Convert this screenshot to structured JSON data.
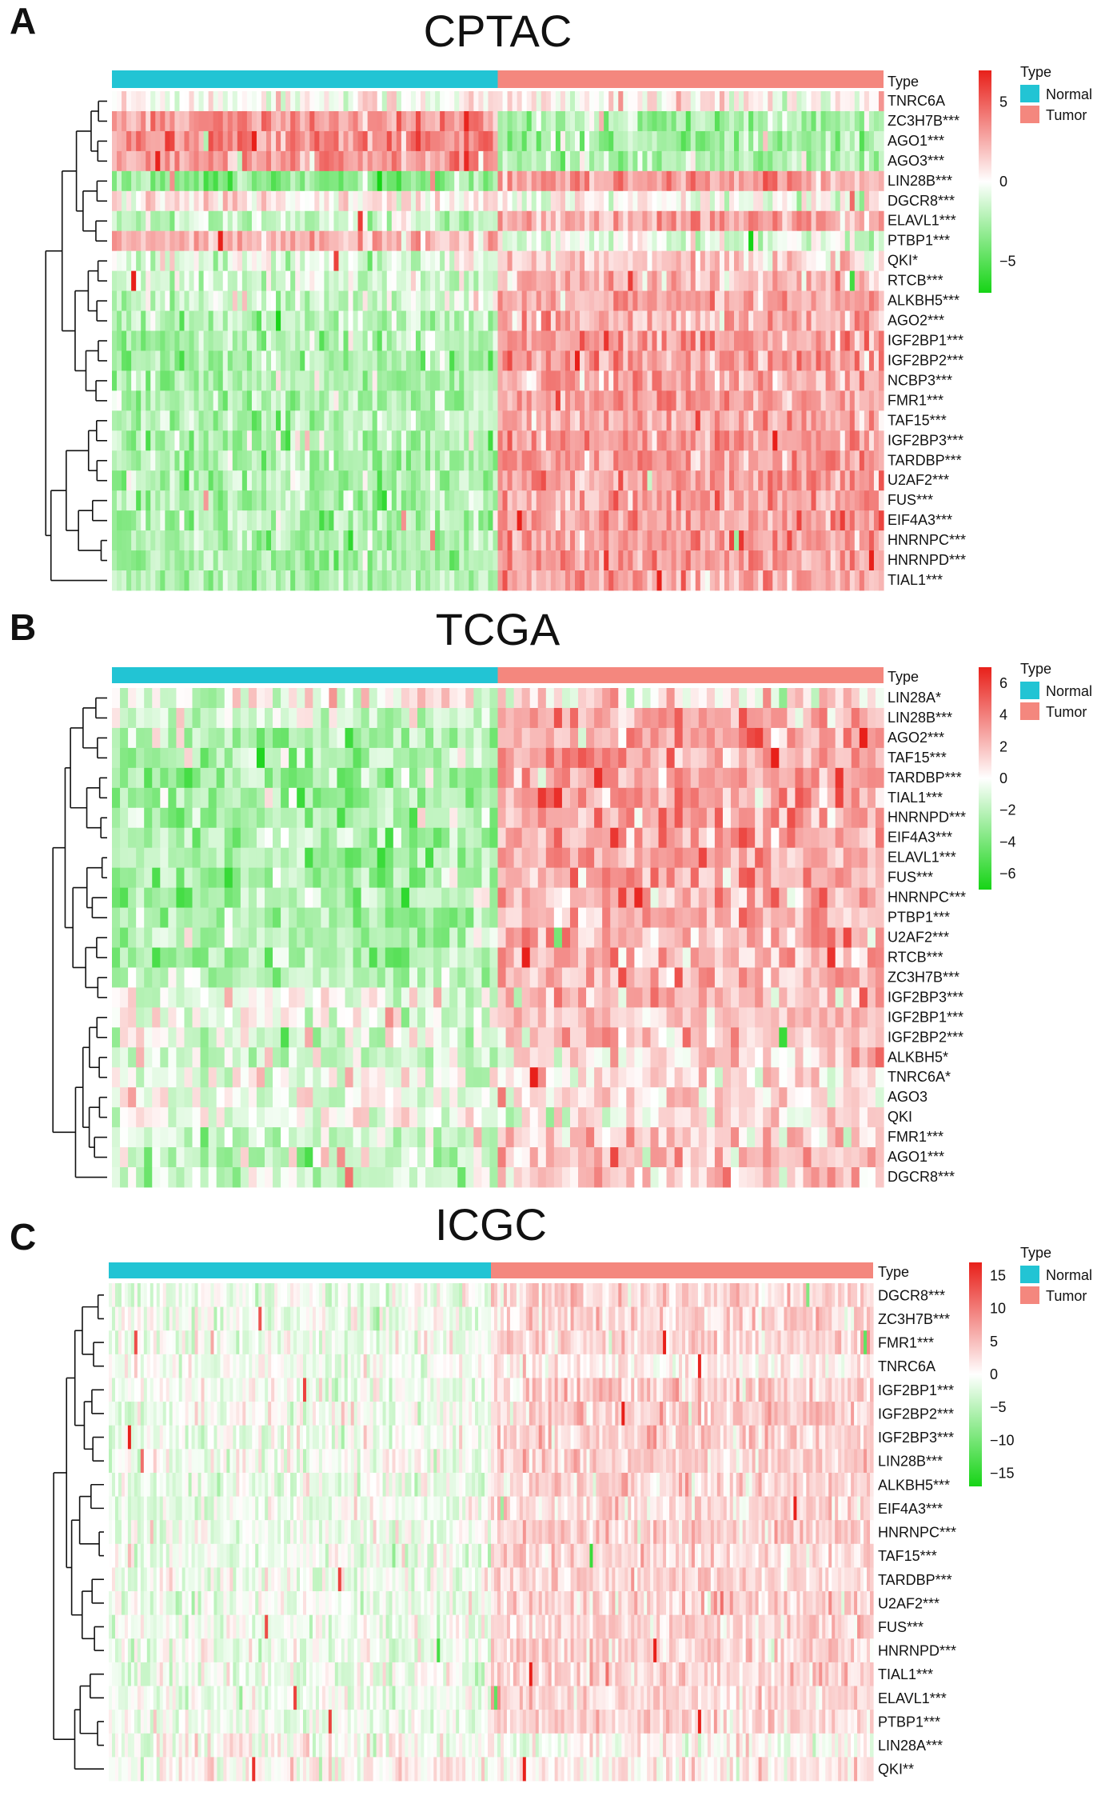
{
  "colors": {
    "normal": "#22c4d4",
    "tumor": "#f4877e",
    "high": "#e8201a",
    "mid": "#ffffff",
    "low": "#16d416"
  },
  "legend": {
    "title": "Type",
    "entries": [
      "Normal",
      "Tumor"
    ]
  },
  "chart_data": [
    {
      "type": "heatmap",
      "panel": "A",
      "title": "CPTAC",
      "annotation_label": "Type",
      "groups": [
        "Normal",
        "Tumor"
      ],
      "group_fraction": [
        0.5,
        0.5
      ],
      "rows": [
        "TNRC6A",
        "ZC3H7B***",
        "AGO1***",
        "AGO3***",
        "LIN28B***",
        "DGCR8***",
        "ELAVL1***",
        "PTBP1***",
        "QKI*",
        "RTCB***",
        "ALKBH5***",
        "AGO2***",
        "IGF2BP1***",
        "IGF2BP2***",
        "NCBP3***",
        "FMR1***",
        "TAF15***",
        "IGF2BP3***",
        "TARDBP***",
        "U2AF2***",
        "FUS***",
        "EIF4A3***",
        "HNRNPC***",
        "HNRNPD***",
        "TIAL1***"
      ],
      "normal_mean": [
        0.1,
        1.2,
        1.4,
        1.1,
        -1.3,
        0.3,
        -0.6,
        0.8,
        -0.3,
        -0.5,
        -0.4,
        -0.8,
        -0.9,
        -0.9,
        -0.9,
        -0.9,
        -0.8,
        -0.9,
        -0.9,
        -0.9,
        -0.9,
        -0.9,
        -0.9,
        -0.9,
        -0.9
      ],
      "tumor_mean": [
        0.1,
        -0.8,
        -1.0,
        -0.8,
        1.0,
        -0.1,
        1.0,
        -0.3,
        0.5,
        0.8,
        0.9,
        0.9,
        1.1,
        1.1,
        1.0,
        1.1,
        1.0,
        1.1,
        1.1,
        1.1,
        1.1,
        1.1,
        1.1,
        1.1,
        1.0
      ],
      "color_scale": {
        "min": -7,
        "max": 7,
        "ticks": [
          "5",
          "0",
          "−5"
        ],
        "tick_values": [
          5,
          0,
          -5
        ]
      },
      "n_columns": 160
    },
    {
      "type": "heatmap",
      "panel": "B",
      "title": "TCGA",
      "annotation_label": "Type",
      "groups": [
        "Normal",
        "Tumor"
      ],
      "group_fraction": [
        0.5,
        0.5
      ],
      "rows": [
        "LIN28A*",
        "LIN28B***",
        "AGO2***",
        "TAF15***",
        "TARDBP***",
        "TIAL1***",
        "HNRNPD***",
        "EIF4A3***",
        "ELAVL1***",
        "FUS***",
        "HNRNPC***",
        "PTBP1***",
        "U2AF2***",
        "RTCB***",
        "ZC3H7B***",
        "IGF2BP3***",
        "IGF2BP1***",
        "IGF2BP2***",
        "ALKBH5*",
        "TNRC6A*",
        "AGO3",
        "QKI",
        "FMR1***",
        "AGO1***",
        "DGCR8***"
      ],
      "normal_mean": [
        -0.1,
        -0.3,
        -1.0,
        -1.0,
        -1.0,
        -1.0,
        -1.0,
        -1.0,
        -1.0,
        -1.0,
        -1.0,
        -1.0,
        -1.0,
        -0.9,
        -0.8,
        -0.3,
        -0.3,
        -0.3,
        -0.4,
        -0.2,
        -0.2,
        0.0,
        -0.5,
        -0.7,
        -0.6
      ],
      "tumor_mean": [
        0.2,
        0.9,
        1.1,
        1.1,
        1.1,
        1.1,
        1.1,
        1.1,
        1.1,
        1.1,
        1.1,
        1.0,
        1.0,
        0.9,
        0.9,
        0.7,
        0.7,
        0.7,
        0.5,
        0.3,
        0.3,
        0.2,
        0.6,
        0.7,
        0.6
      ],
      "color_scale": {
        "min": -7,
        "max": 7,
        "ticks": [
          "6",
          "4",
          "2",
          "0",
          "−2",
          "−4",
          "−6"
        ],
        "tick_values": [
          6,
          4,
          2,
          0,
          -2,
          -4,
          -6
        ]
      },
      "n_columns": 96
    },
    {
      "type": "heatmap",
      "panel": "C",
      "title": "ICGC",
      "annotation_label": "Type",
      "groups": [
        "Normal",
        "Tumor"
      ],
      "group_fraction": [
        0.5,
        0.5
      ],
      "rows": [
        "DGCR8***",
        "ZC3H7B***",
        "FMR1***",
        "TNRC6A",
        "IGF2BP1***",
        "IGF2BP2***",
        "IGF2BP3***",
        "LIN28B***",
        "ALKBH5***",
        "EIF4A3***",
        "HNRNPC***",
        "TAF15***",
        "TARDBP***",
        "U2AF2***",
        "FUS***",
        "HNRNPD***",
        "TIAL1***",
        "ELAVL1***",
        "PTBP1***",
        "LIN28A***",
        "QKI**"
      ],
      "normal_mean": [
        -0.3,
        -0.3,
        -0.3,
        -0.1,
        -0.2,
        -0.2,
        -0.2,
        -0.2,
        -0.3,
        -0.3,
        -0.3,
        -0.3,
        -0.3,
        -0.3,
        -0.3,
        -0.3,
        -0.3,
        -0.3,
        -0.3,
        0.0,
        0.1
      ],
      "tumor_mean": [
        0.8,
        0.8,
        0.8,
        0.3,
        0.9,
        0.9,
        0.9,
        0.9,
        0.8,
        0.8,
        0.8,
        0.8,
        0.8,
        0.8,
        0.8,
        0.8,
        0.8,
        0.8,
        0.8,
        0.0,
        0.4
      ],
      "color_scale": {
        "min": -17,
        "max": 17,
        "ticks": [
          "15",
          "10",
          "5",
          "0",
          "−5",
          "−10",
          "−15"
        ],
        "tick_values": [
          15,
          10,
          5,
          0,
          -5,
          -10,
          -15
        ]
      },
      "n_columns": 240
    }
  ]
}
